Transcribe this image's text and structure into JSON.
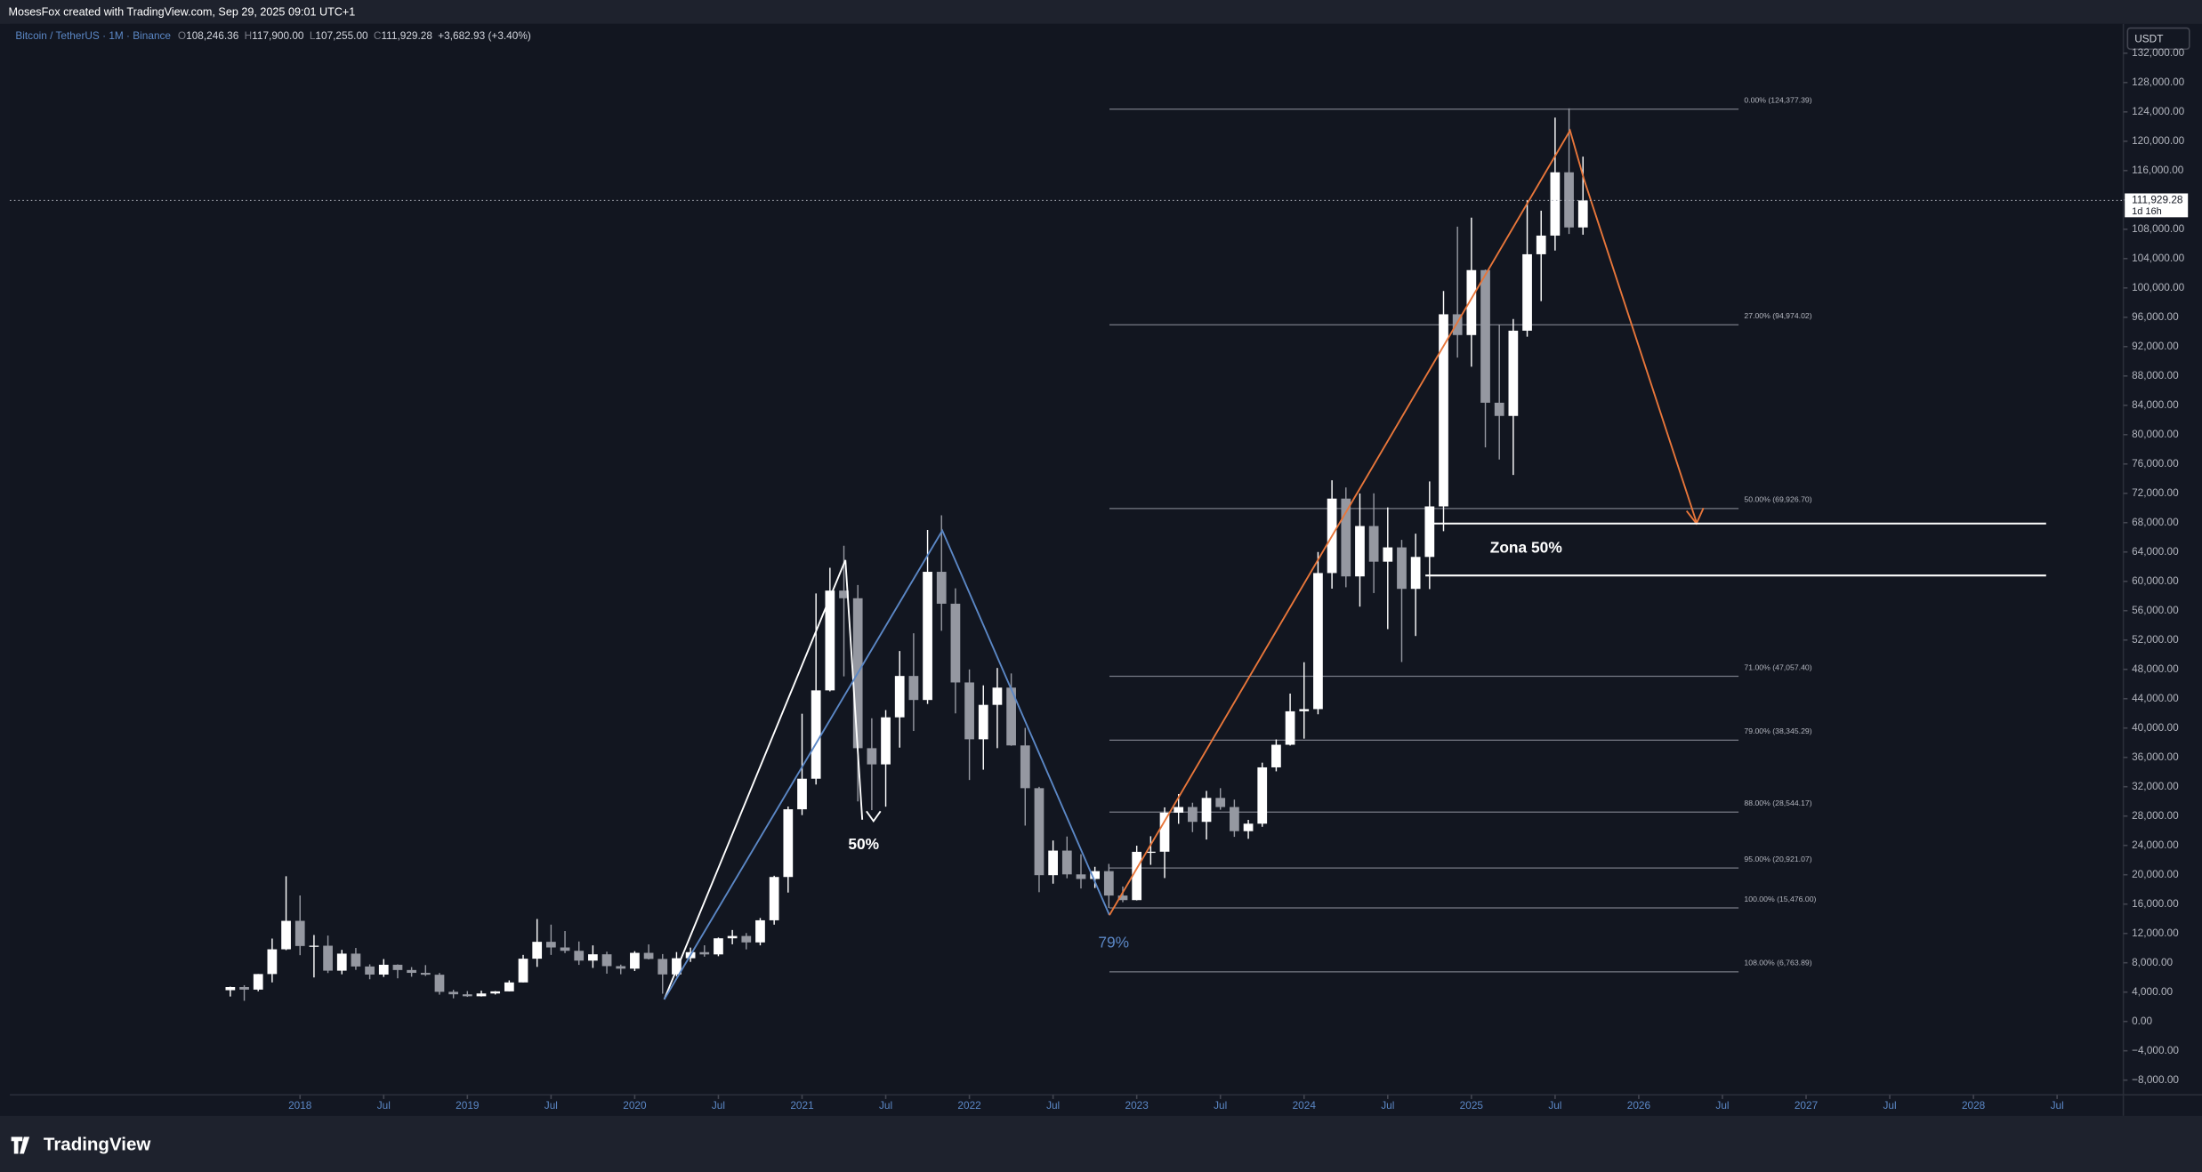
{
  "header": "MosesFox created with TradingView.com, Sep 29, 2025 09:01 UTC+1",
  "footer": "TradingView",
  "chart_data": {
    "type": "candlestick",
    "symbol": "Bitcoin / TetherUS · 1M · Binance",
    "ohlc": [
      {
        "key": "O",
        "value": 108246.36,
        "label": "108,246.36"
      },
      {
        "key": "H",
        "value": 117900,
        "label": "117,900.00"
      },
      {
        "key": "L",
        "value": 107255,
        "label": "107,255.00"
      },
      {
        "key": "C",
        "value": 111929.28,
        "label": "111,929.28"
      }
    ],
    "change": "+3,682.93 (+3.40%)",
    "currency": "USDT",
    "last_price": {
      "value": 111929.28,
      "label": "111,929.28",
      "countdown": "1d 16h"
    },
    "up_color": "#ffffff",
    "down_color": "#9598a1",
    "x": [
      "2017-08",
      "2017-09",
      "2017-10",
      "2017-11",
      "2017-12",
      "2018-01",
      "2018-02",
      "2018-03",
      "2018-04",
      "2018-05",
      "2018-06",
      "2018-07",
      "2018-08",
      "2018-09",
      "2018-10",
      "2018-11",
      "2018-12",
      "2019-01",
      "2019-02",
      "2019-03",
      "2019-04",
      "2019-05",
      "2019-06",
      "2019-07",
      "2019-08",
      "2019-09",
      "2019-10",
      "2019-11",
      "2019-12",
      "2020-01",
      "2020-02",
      "2020-03",
      "2020-04",
      "2020-05",
      "2020-06",
      "2020-07",
      "2020-08",
      "2020-09",
      "2020-10",
      "2020-11",
      "2020-12",
      "2021-01",
      "2021-02",
      "2021-03",
      "2021-04",
      "2021-05",
      "2021-06",
      "2021-07",
      "2021-08",
      "2021-09",
      "2021-10",
      "2021-11",
      "2021-12",
      "2022-01",
      "2022-02",
      "2022-03",
      "2022-04",
      "2022-05",
      "2022-06",
      "2022-07",
      "2022-08",
      "2022-09",
      "2022-10",
      "2022-11",
      "2022-12",
      "2023-01",
      "2023-02",
      "2023-03",
      "2023-04",
      "2023-05",
      "2023-06",
      "2023-07",
      "2023-08",
      "2023-09",
      "2023-10",
      "2023-11",
      "2023-12",
      "2024-01",
      "2024-02",
      "2024-03",
      "2024-04",
      "2024-05",
      "2024-06",
      "2024-07",
      "2024-08",
      "2024-09",
      "2024-10",
      "2024-11",
      "2024-12",
      "2025-01",
      "2025-02",
      "2025-03",
      "2025-04",
      "2025-05",
      "2025-06",
      "2025-07",
      "2025-08",
      "2025-09"
    ],
    "open": [
      4261,
      4690,
      4341,
      6463,
      9838,
      13716,
      10285,
      10326,
      6923,
      9246,
      7494,
      6391,
      7729,
      7012,
      6626,
      6371,
      4041,
      3702,
      3434,
      3813,
      4103,
      5321,
      8555,
      10855,
      10085,
      9631,
      8294,
      9155,
      7541,
      7196,
      9353,
      8523,
      6410,
      8620,
      9448,
      9138,
      11335,
      11650,
      10776,
      13791,
      19695,
      28924,
      33092,
      45135,
      58740,
      57694,
      37253,
      35045,
      41461,
      47100,
      43824,
      61299,
      56950,
      46216,
      38466,
      43160,
      45510,
      37630,
      31801,
      19942,
      23293,
      20050,
      19423,
      20490,
      17164,
      16542,
      23125,
      23141,
      28465,
      29233,
      27210,
      30472,
      29232,
      25941,
      26963,
      34639,
      37723,
      42283,
      42582,
      61130,
      71280,
      60672,
      67540,
      62678,
      64628,
      58974,
      63328,
      70215,
      96407,
      93576,
      102430,
      84350,
      82548,
      94172,
      104591,
      107135,
      115764,
      108246.36
    ],
    "high": [
      4745,
      4939,
      6470,
      11300,
      19798,
      17176,
      11786,
      11710,
      9759,
      10020,
      7786,
      8507,
      7780,
      7410,
      7680,
      6615,
      4312,
      4140,
      4199,
      4140,
      5600,
      9074,
      13970,
      13200,
      12325,
      10905,
      10370,
      9510,
      7750,
      9578,
      10500,
      9189,
      9460,
      10067,
      10380,
      11444,
      12468,
      12050,
      14100,
      19863,
      29300,
      41950,
      58352,
      61844,
      64854,
      59500,
      41330,
      42448,
      50500,
      52920,
      67000,
      69000,
      59053,
      47990,
      45821,
      48190,
      47444,
      40023,
      31986,
      24668,
      25211,
      22800,
      21085,
      21480,
      18400,
      23960,
      25250,
      29184,
      31000,
      29820,
      31431,
      31804,
      30244,
      27483,
      35280,
      38450,
      44700,
      48969,
      64000,
      73777,
      72797,
      71979,
      71997,
      70079,
      65660,
      66500,
      73620,
      99588,
      108353,
      109588,
      102500,
      95000,
      95758,
      111980,
      110530,
      123218,
      124474,
      117900
    ],
    "low": [
      3400,
      2817,
      4110,
      5325,
      9722,
      9035,
      6000,
      6600,
      6430,
      7032,
      5750,
      6070,
      5880,
      6100,
      6205,
      3652,
      3156,
      3349,
      3400,
      3672,
      4097,
      5320,
      7440,
      9070,
      9320,
      7710,
      7300,
      6515,
      6435,
      6871,
      8450,
      3782,
      6150,
      8117,
      8833,
      8893,
      10518,
      9825,
      10375,
      13195,
      17572,
      28130,
      32296,
      45000,
      47044,
      30000,
      28805,
      29278,
      37332,
      39600,
      43283,
      53256,
      42000,
      32917,
      34322,
      37260,
      37578,
      26700,
      17622,
      18781,
      19520,
      18125,
      18190,
      15476,
      16256,
      16500,
      21351,
      19549,
      26942,
      25811,
      24800,
      28861,
      25166,
      24901,
      26538,
      34097,
      37615,
      38555,
      41884,
      59005,
      59191,
      56552,
      58402,
      53485,
      49000,
      52550,
      58946,
      66835,
      90500,
      89256,
      78258,
      76606,
      74508,
      93346,
      98200,
      105100,
      107350,
      107255
    ],
    "close": [
      4690,
      4341,
      6463,
      9838,
      13716,
      10285,
      10326,
      6923,
      9246,
      7494,
      6391,
      7729,
      7012,
      6626,
      6371,
      4041,
      3702,
      3434,
      3813,
      4103,
      5321,
      8555,
      10855,
      10085,
      9631,
      8294,
      9155,
      7541,
      7196,
      9353,
      8523,
      6410,
      8620,
      9448,
      9138,
      11335,
      11650,
      10776,
      13791,
      19695,
      28924,
      33092,
      45135,
      58740,
      57694,
      37253,
      35045,
      41461,
      47100,
      43824,
      61299,
      56950,
      46216,
      38466,
      43160,
      45510,
      37630,
      31801,
      19942,
      23293,
      20050,
      19423,
      20490,
      17164,
      16542,
      23125,
      23141,
      28465,
      29233,
      27210,
      30472,
      29232,
      25941,
      26963,
      34639,
      37723,
      42283,
      42582,
      61130,
      71280,
      60672,
      67540,
      62678,
      64628,
      58974,
      63328,
      70215,
      96407,
      93576,
      102430,
      84350,
      82548,
      94172,
      104591,
      107135,
      115764,
      108246.36,
      111929.28
    ],
    "ylim": [
      -10000,
      136000
    ],
    "yticks": [
      {
        "value": 132000,
        "label": "132,000.00"
      },
      {
        "value": 128000,
        "label": "128,000.00"
      },
      {
        "value": 124000,
        "label": "124,000.00"
      },
      {
        "value": 120000,
        "label": "120,000.00"
      },
      {
        "value": 116000,
        "label": "116,000.00"
      },
      {
        "value": 112000,
        "label": "112,000.00"
      },
      {
        "value": 108000,
        "label": "108,000.00"
      },
      {
        "value": 104000,
        "label": "104,000.00"
      },
      {
        "value": 100000,
        "label": "100,000.00"
      },
      {
        "value": 96000,
        "label": "96,000.00"
      },
      {
        "value": 92000,
        "label": "92,000.00"
      },
      {
        "value": 88000,
        "label": "88,000.00"
      },
      {
        "value": 84000,
        "label": "84,000.00"
      },
      {
        "value": 80000,
        "label": "80,000.00"
      },
      {
        "value": 76000,
        "label": "76,000.00"
      },
      {
        "value": 72000,
        "label": "72,000.00"
      },
      {
        "value": 68000,
        "label": "68,000.00"
      },
      {
        "value": 64000,
        "label": "64,000.00"
      },
      {
        "value": 60000,
        "label": "60,000.00"
      },
      {
        "value": 56000,
        "label": "56,000.00"
      },
      {
        "value": 52000,
        "label": "52,000.00"
      },
      {
        "value": 48000,
        "label": "48,000.00"
      },
      {
        "value": 44000,
        "label": "44,000.00"
      },
      {
        "value": 40000,
        "label": "40,000.00"
      },
      {
        "value": 36000,
        "label": "36,000.00"
      },
      {
        "value": 32000,
        "label": "32,000.00"
      },
      {
        "value": 28000,
        "label": "28,000.00"
      },
      {
        "value": 24000,
        "label": "24,000.00"
      },
      {
        "value": 20000,
        "label": "20,000.00"
      },
      {
        "value": 16000,
        "label": "16,000.00"
      },
      {
        "value": 12000,
        "label": "12,000.00"
      },
      {
        "value": 8000,
        "label": "8,000.00"
      },
      {
        "value": 4000,
        "label": "4,000.00"
      },
      {
        "value": 0,
        "label": "0.00"
      },
      {
        "value": -4000,
        "label": "−4,000.00"
      },
      {
        "value": -8000,
        "label": "−8,000.00"
      }
    ],
    "xticks": [
      {
        "value": "2018-01",
        "label": "2018"
      },
      {
        "value": "2018-07",
        "label": "Jul"
      },
      {
        "value": "2019-01",
        "label": "2019"
      },
      {
        "value": "2019-07",
        "label": "Jul"
      },
      {
        "value": "2020-01",
        "label": "2020"
      },
      {
        "value": "2020-07",
        "label": "Jul"
      },
      {
        "value": "2021-01",
        "label": "2021"
      },
      {
        "value": "2021-07",
        "label": "Jul"
      },
      {
        "value": "2022-01",
        "label": "2022"
      },
      {
        "value": "2022-07",
        "label": "Jul"
      },
      {
        "value": "2023-01",
        "label": "2023"
      },
      {
        "value": "2023-07",
        "label": "Jul"
      },
      {
        "value": "2024-01",
        "label": "2024"
      },
      {
        "value": "2024-07",
        "label": "Jul"
      },
      {
        "value": "2025-01",
        "label": "2025"
      },
      {
        "value": "2025-07",
        "label": "Jul"
      },
      {
        "value": "2026-01",
        "label": "2026"
      },
      {
        "value": "2026-07",
        "label": "Jul"
      },
      {
        "value": "2027-01",
        "label": "2027"
      },
      {
        "value": "2027-07",
        "label": "Jul"
      },
      {
        "value": "2028-01",
        "label": "2028"
      },
      {
        "value": "2028-07",
        "label": "Jul"
      }
    ],
    "fib_levels": [
      {
        "price": 124377.39,
        "label": "0.00% (124,377.39)"
      },
      {
        "price": 94974.02,
        "label": "27.00% (94,974.02)"
      },
      {
        "price": 69926.7,
        "label": "50.00% (69,926.70)"
      },
      {
        "price": 47057.4,
        "label": "71.00% (47,057.40)"
      },
      {
        "price": 38345.29,
        "label": "79.00% (38,345.29)"
      },
      {
        "price": 28544.17,
        "label": "88.00% (28,544.17)"
      },
      {
        "price": 20921.07,
        "label": "95.00% (20,921.07)"
      },
      {
        "price": 15476.0,
        "label": "100.00% (15,476.00)"
      },
      {
        "price": 6763.89,
        "label": "108.00% (6,763.89)"
      }
    ],
    "annotations": {
      "white_wave": "50%",
      "blue_wave": "79%",
      "zone": "Zona 50%"
    }
  }
}
